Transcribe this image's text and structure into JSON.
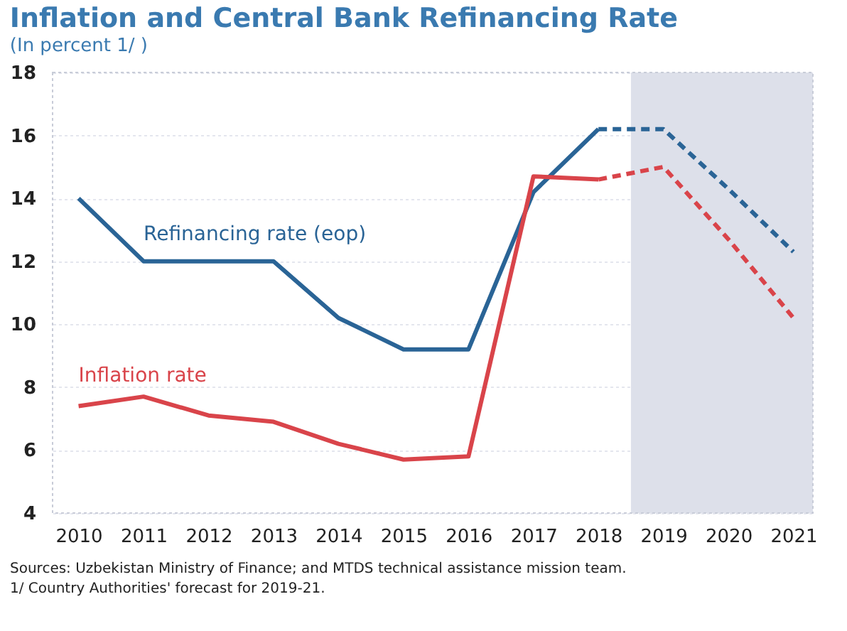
{
  "chart_data": {
    "type": "line",
    "title": "Inflation and Central Bank Refinancing Rate",
    "subtitle": "(In percent 1/ )",
    "xlim": [
      2009.6,
      2021.3
    ],
    "xticks": [
      2010,
      2011,
      2012,
      2013,
      2014,
      2015,
      2016,
      2017,
      2018,
      2019,
      2020,
      2021
    ],
    "ylim": [
      4,
      18
    ],
    "yticks": [
      4,
      6,
      8,
      10,
      12,
      14,
      16,
      18
    ],
    "grid": "y",
    "legend": false,
    "series": [
      {
        "name": "Refinancing rate (eop)",
        "color": "#2a6496",
        "line_style": "solid",
        "x": [
          2010,
          2011,
          2012,
          2013,
          2014,
          2015,
          2016,
          2017,
          2018
        ],
        "values": [
          14,
          12,
          12,
          12,
          10.2,
          9.2,
          9.2,
          14.2,
          16.2
        ]
      },
      {
        "color": "#2a6496",
        "line_style": "dashed",
        "x": [
          2018,
          2019,
          2020,
          2021
        ],
        "values": [
          16.2,
          16.2,
          14.3,
          12.3
        ]
      },
      {
        "name": "Inflation rate",
        "color": "#d9444a",
        "line_style": "solid",
        "x": [
          2010,
          2011,
          2012,
          2013,
          2014,
          2015,
          2016,
          2017,
          2018
        ],
        "values": [
          7.4,
          7.7,
          7.1,
          6.9,
          6.2,
          5.7,
          5.8,
          14.7,
          14.6
        ]
      },
      {
        "color": "#d9444a",
        "line_style": "dashed",
        "x": [
          2018,
          2019,
          2020,
          2021
        ],
        "values": [
          14.6,
          15.0,
          12.7,
          10.2
        ]
      }
    ],
    "bands": [
      {
        "axis": "x",
        "from": 2018.5,
        "to": 2021.3,
        "color": "#dde0ea"
      }
    ],
    "annotations": [
      "Sources: Uzbekistan Ministry of Finance; and MTDS technical assistance mission team.",
      "1/ Country Authorities' forecast for 2019-21."
    ]
  }
}
